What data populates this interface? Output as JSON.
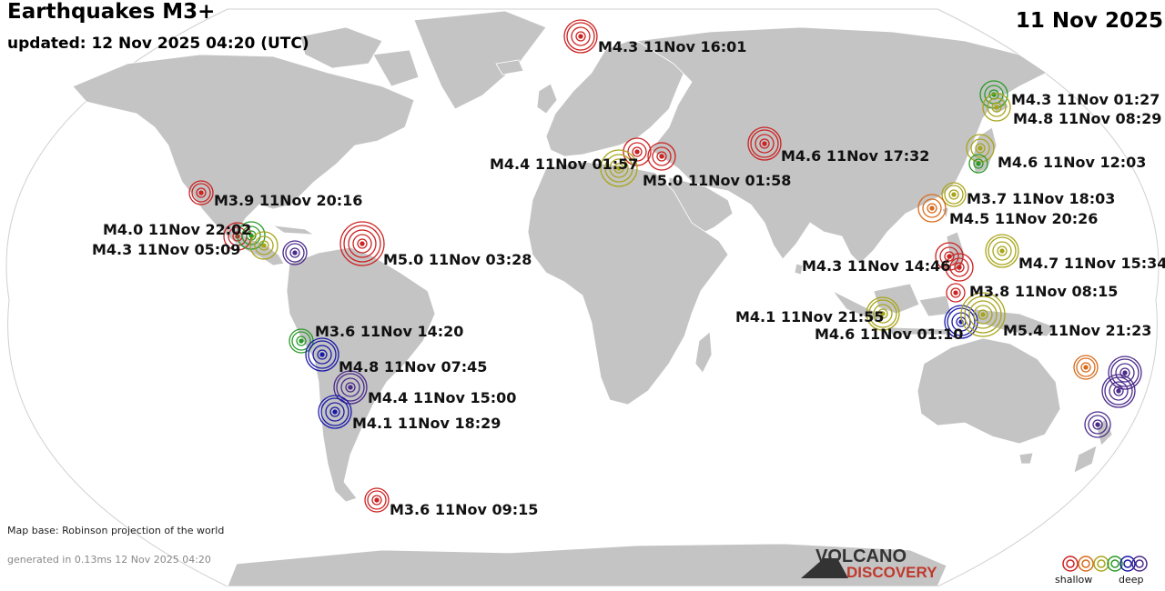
{
  "header": {
    "title": "Earthquakes M3+",
    "updated": "updated: 12 Nov 2025 04:20 (UTC)",
    "date": "11 Nov 2025"
  },
  "footer": {
    "map_base": "Map base: Robinson projection of the world",
    "generated": "generated in 0.13ms 12 Nov 2025 04:20"
  },
  "legend": {
    "shallow_label": "shallow",
    "deep_label": "deep",
    "depth_colors": [
      "#cc2222",
      "#d96a1a",
      "#a8a51a",
      "#2a9a2a",
      "#1a1aa8",
      "#4a2a8a"
    ]
  },
  "logo": {
    "line1": "VOLCANO",
    "line2": "DISCOVERY"
  },
  "colors": {
    "land": "#c4c4c4",
    "ocean": "#ffffff",
    "outline": "#cccccc"
  },
  "earthquakes": [
    {
      "label": "M4.3 11Nov 16:01",
      "depth_color": "#cc2222"
    },
    {
      "label": "M4.3 11Nov 01:27",
      "depth_color": "#2a9a2a"
    },
    {
      "label": "M4.8 11Nov 08:29",
      "depth_color": "#a8a51a"
    },
    {
      "label": "M4.6 11Nov 17:32",
      "depth_color": "#cc2222"
    },
    {
      "label": "M4.6 11Nov 12:03",
      "depth_color": "#2a9a2a"
    },
    {
      "label": "M4.4 11Nov 01:57",
      "depth_color": "#a8a51a"
    },
    {
      "label": "M5.0 11Nov 01:58",
      "depth_color": "#cc2222"
    },
    {
      "label": "M3.9 11Nov 20:16",
      "depth_color": "#cc2222"
    },
    {
      "label": "M3.7 11Nov 18:03",
      "depth_color": "#a8a51a"
    },
    {
      "label": "M4.5 11Nov 20:26",
      "depth_color": "#d96a1a"
    },
    {
      "label": "M4.0 11Nov 22:02",
      "depth_color": "#2a9a2a"
    },
    {
      "label": "M4.3 11Nov 05:09",
      "depth_color": "#a8a51a"
    },
    {
      "label": "M5.0 11Nov 03:28",
      "depth_color": "#cc2222"
    },
    {
      "label": "M4.3 11Nov 14:46",
      "depth_color": "#cc2222"
    },
    {
      "label": "M4.7 11Nov 15:34",
      "depth_color": "#a8a51a"
    },
    {
      "label": "M3.8 11Nov 08:15",
      "depth_color": "#cc2222"
    },
    {
      "label": "M4.1 11Nov 21:55",
      "depth_color": "#a8a51a"
    },
    {
      "label": "M4.6 11Nov 01:10",
      "depth_color": "#1a1aa8"
    },
    {
      "label": "M5.4 11Nov 21:23",
      "depth_color": "#a8a51a"
    },
    {
      "label": "M3.6 11Nov 14:20",
      "depth_color": "#2a9a2a"
    },
    {
      "label": "M4.8 11Nov 07:45",
      "depth_color": "#1a1aa8"
    },
    {
      "label": "M4.4 11Nov 15:00",
      "depth_color": "#4a2a8a"
    },
    {
      "label": "M4.1 11Nov 18:29",
      "depth_color": "#1a1aa8"
    },
    {
      "label": "M3.6 11Nov 09:15",
      "depth_color": "#cc2222"
    }
  ]
}
